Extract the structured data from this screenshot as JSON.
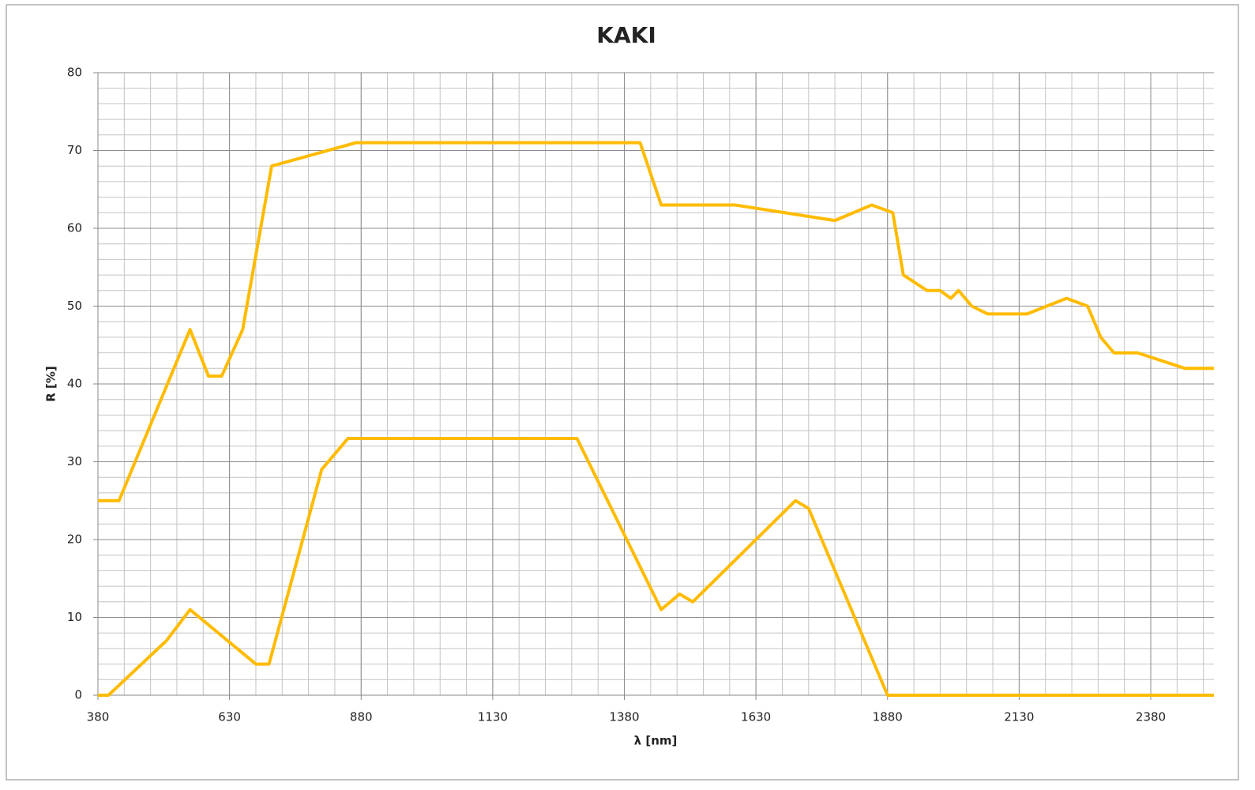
{
  "chart_data": {
    "type": "line",
    "title": "KAKI",
    "x_label": "λ [nm]",
    "y_label": "R [%]",
    "xlim": [
      380,
      2500
    ],
    "xticks": [
      380,
      630,
      880,
      1130,
      1380,
      1630,
      1880,
      2130,
      2380
    ],
    "ylim": [
      0,
      80
    ],
    "yticks": [
      0,
      10,
      20,
      30,
      40,
      50,
      60,
      70,
      80
    ],
    "grid": true,
    "minor_grid": {
      "x": 50,
      "y": 2
    },
    "series": [
      {
        "color": "#ffbb00",
        "x": [
          380,
          420,
          555,
          590,
          615,
          655,
          710,
          870,
          1410,
          1450,
          1590,
          1780,
          1850,
          1890,
          1910,
          1955,
          1980,
          2000,
          2015,
          2040,
          2070,
          2145,
          2220,
          2260,
          2285,
          2310,
          2355,
          2445,
          2500
        ],
        "values": [
          25,
          25,
          47,
          41,
          41,
          47,
          68,
          71,
          71,
          63,
          63,
          61,
          63,
          62,
          54,
          52,
          52,
          51,
          52,
          50,
          49,
          49,
          51,
          50,
          46,
          44,
          44,
          42,
          42
        ]
      },
      {
        "color": "#ffbb00",
        "x": [
          380,
          400,
          510,
          555,
          680,
          705,
          805,
          855,
          1290,
          1450,
          1485,
          1510,
          1705,
          1730,
          1880,
          2500
        ],
        "values": [
          0,
          0,
          7,
          11,
          4,
          4,
          29,
          33,
          33,
          11,
          13,
          12,
          25,
          24,
          0,
          0
        ]
      }
    ]
  }
}
